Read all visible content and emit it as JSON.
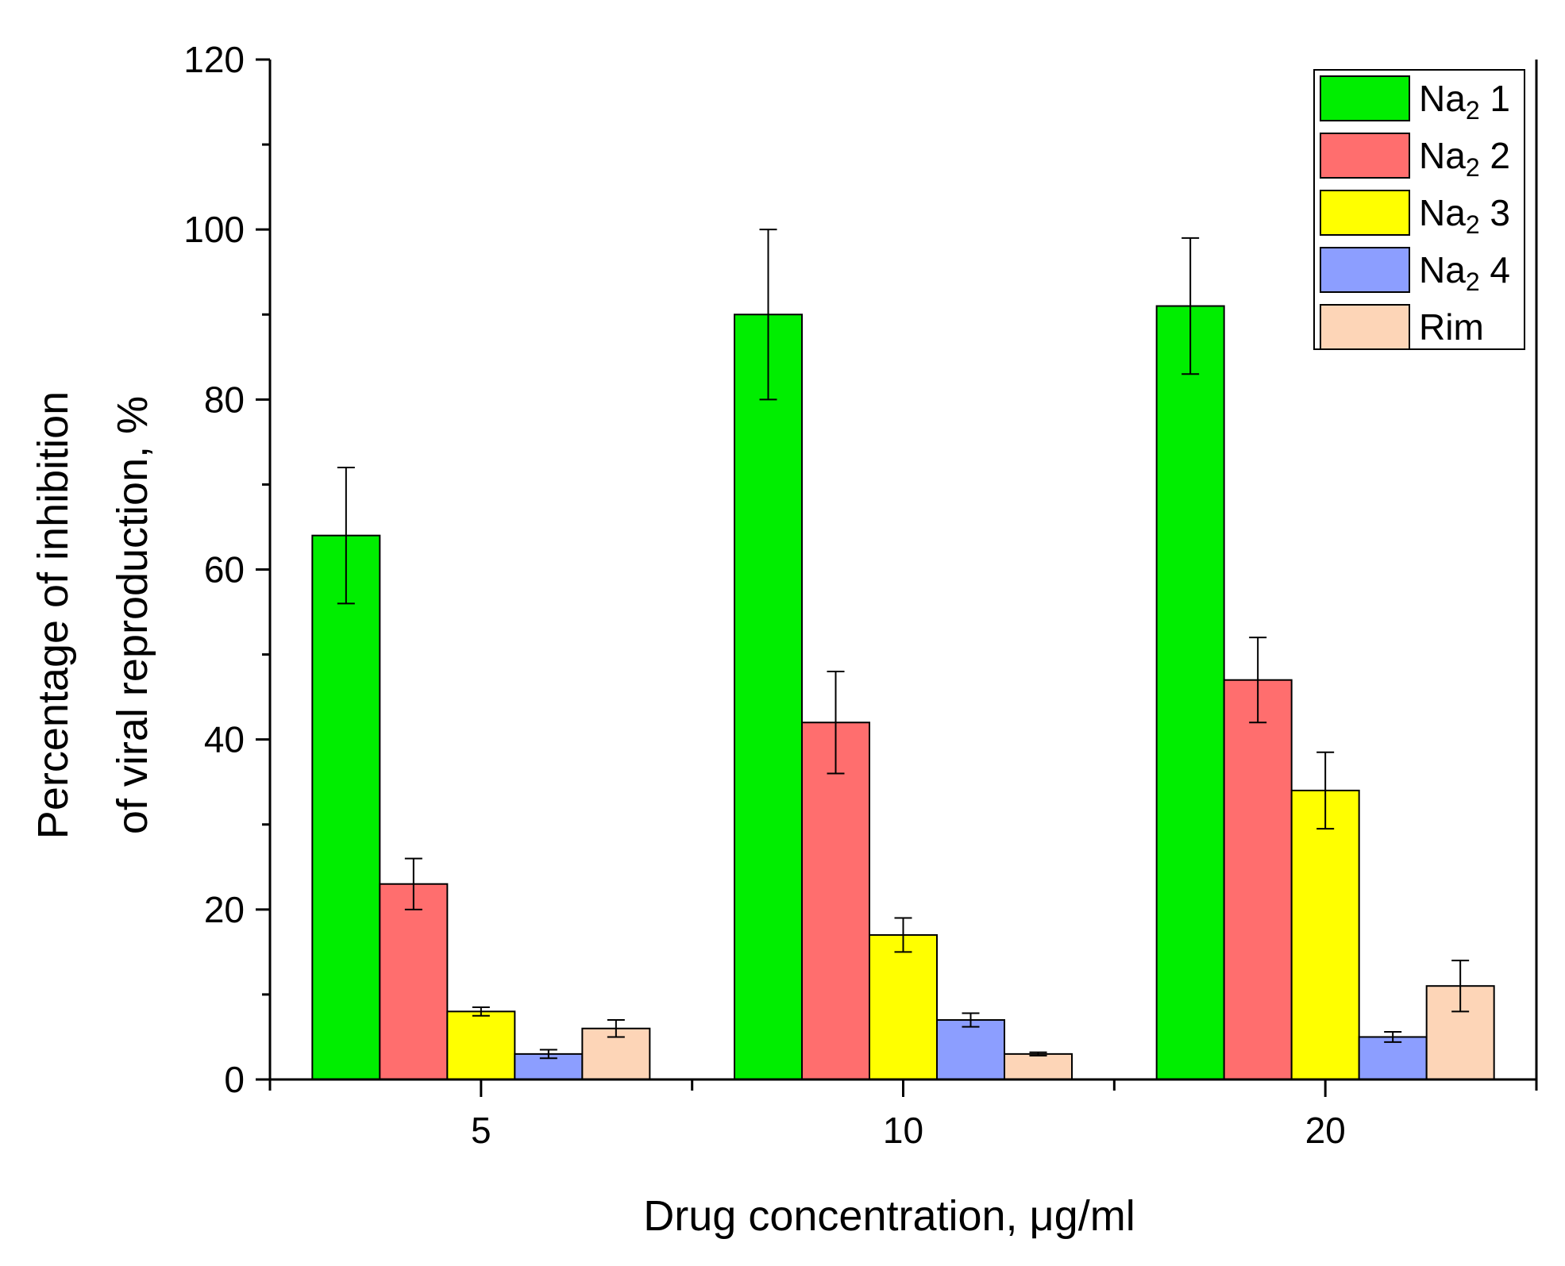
{
  "chart_data": {
    "type": "bar",
    "title": "",
    "xlabel": "Drug concentration, μg/ml",
    "ylabel_line1": "Percentage of inhibition",
    "ylabel_line2": "of viral reproduction, %",
    "categories": [
      "5",
      "10",
      "20"
    ],
    "ylim": [
      0,
      120
    ],
    "yticks": [
      0,
      20,
      40,
      60,
      80,
      100,
      120
    ],
    "legend_position": "top-right",
    "series": [
      {
        "name": "Na",
        "sub": "2",
        "suffix": " 1",
        "color": "#00ee00",
        "values": [
          64,
          90,
          91
        ],
        "errors": [
          8,
          10,
          8
        ]
      },
      {
        "name": "Na",
        "sub": "2",
        "suffix": " 2",
        "color": "#ff6e6e",
        "values": [
          23,
          42,
          47
        ],
        "errors": [
          3,
          6,
          5
        ]
      },
      {
        "name": "Na",
        "sub": "2",
        "suffix": " 3",
        "color": "#ffff00",
        "values": [
          8,
          17,
          34
        ],
        "errors": [
          0.5,
          2,
          4.5
        ]
      },
      {
        "name": "Na",
        "sub": "2",
        "suffix": " 4",
        "color": "#8c9eff",
        "values": [
          3,
          7,
          5
        ],
        "errors": [
          0.5,
          0.8,
          0.6
        ]
      },
      {
        "name": "Rim",
        "sub": "",
        "suffix": "",
        "color": "#fdd5b7",
        "values": [
          6,
          3,
          11
        ],
        "errors": [
          1,
          0.2,
          3
        ]
      }
    ]
  }
}
